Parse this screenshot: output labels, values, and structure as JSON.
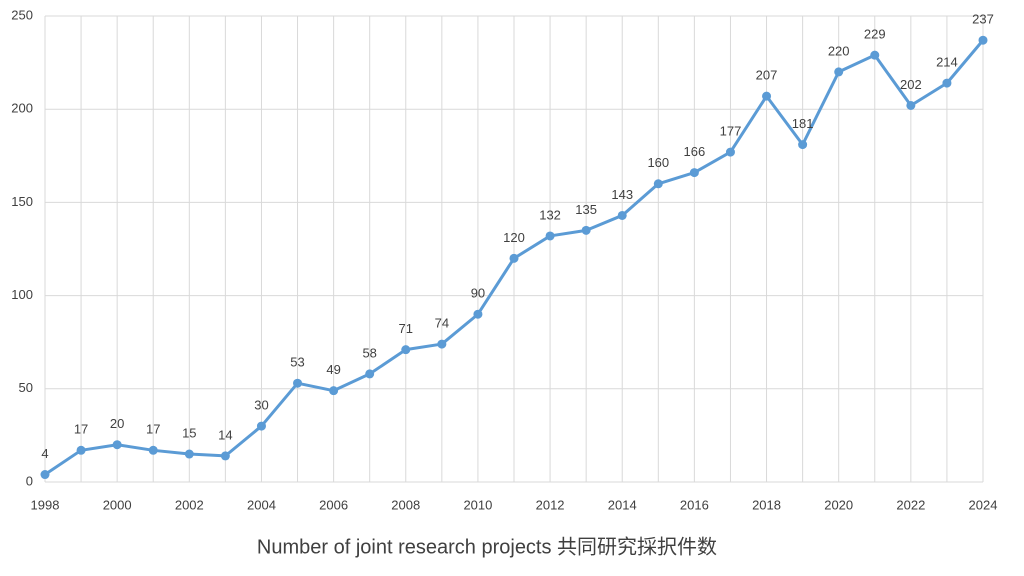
{
  "chart_data": {
    "type": "line",
    "x_label": "Number of joint research projects 共同研究採択件数",
    "x": [
      1998,
      1999,
      2000,
      2001,
      2002,
      2003,
      2004,
      2005,
      2006,
      2007,
      2008,
      2009,
      2010,
      2011,
      2012,
      2013,
      2014,
      2015,
      2016,
      2017,
      2018,
      2019,
      2020,
      2021,
      2022,
      2023,
      2024
    ],
    "series": [
      {
        "color": "#5b9bd5",
        "values": [
          4,
          17,
          20,
          17,
          15,
          14,
          30,
          53,
          49,
          58,
          71,
          74,
          90,
          120,
          132,
          135,
          143,
          160,
          166,
          177,
          207,
          181,
          220,
          229,
          202,
          214,
          237
        ]
      }
    ],
    "xlim": [
      1998,
      2024
    ],
    "xticks": [
      1998,
      2000,
      2002,
      2004,
      2006,
      2008,
      2010,
      2012,
      2014,
      2016,
      2018,
      2020,
      2022,
      2024
    ],
    "ylim": [
      0,
      250
    ],
    "yticks": [
      0,
      50,
      100,
      150,
      200,
      250
    ],
    "grid": true
  }
}
